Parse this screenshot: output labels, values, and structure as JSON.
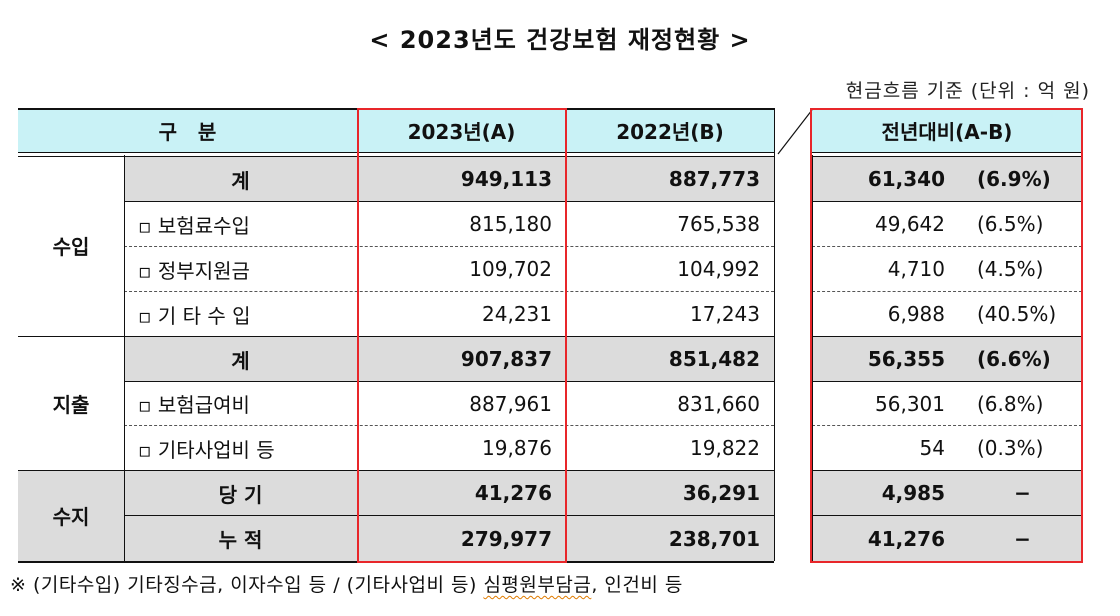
{
  "title": "< 2023년도 건강보험 재정현황 >",
  "unit_note": "현금흐름 기준 (단위 : 억 원)",
  "headers": {
    "category": "구   분",
    "y2023": "2023년(A)",
    "y2022": "2022년(B)",
    "diff": "전년대비(A-B)"
  },
  "groups": {
    "income": "수입",
    "expense": "지출",
    "balance": "수지"
  },
  "rows": [
    {
      "label": "계",
      "v2023": "949,113",
      "v2022": "887,773",
      "diff": "61,340",
      "pct": "(6.9%)"
    },
    {
      "label": "▫ 보험료수입",
      "v2023": "815,180",
      "v2022": "765,538",
      "diff": "49,642",
      "pct": "(6.5%)"
    },
    {
      "label": "▫ 정부지원금",
      "v2023": "109,702",
      "v2022": "104,992",
      "diff": "4,710",
      "pct": "(4.5%)"
    },
    {
      "label": "▫ 기 타 수 입",
      "v2023": "24,231",
      "v2022": "17,243",
      "diff": "6,988",
      "pct": "(40.5%)"
    },
    {
      "label": "계",
      "v2023": "907,837",
      "v2022": "851,482",
      "diff": "56,355",
      "pct": "(6.6%)"
    },
    {
      "label": "▫ 보험급여비",
      "v2023": "887,961",
      "v2022": "831,660",
      "diff": "56,301",
      "pct": "(6.8%)"
    },
    {
      "label": "▫ 기타사업비 등",
      "v2023": "19,876",
      "v2022": "19,822",
      "diff": "54",
      "pct": "(0.3%)"
    },
    {
      "label": "당 기",
      "v2023": "41,276",
      "v2022": "36,291",
      "diff": "4,985",
      "pct": "−"
    },
    {
      "label": "누 적",
      "v2023": "279,977",
      "v2022": "238,701",
      "diff": "41,276",
      "pct": "−"
    }
  ],
  "footnote_prefix": "※ (기타수입) 기타징수금, 이자수입 등 / (기타사업비 등) ",
  "footnote_squiggle": "심평원부담금",
  "footnote_suffix": ", 인건비 등"
}
